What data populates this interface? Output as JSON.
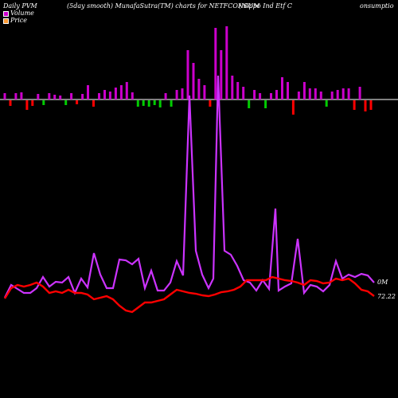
{
  "header": {
    "left": "Daily PVM",
    "middle": "(5day smooth) MunafaSutra(TM) charts for NETFCONSUM",
    "right_a": "(Nippo  Ind Etf  C",
    "right_b": "onsumptio"
  },
  "legend": [
    {
      "label": "Volume",
      "color": "#cc00cc"
    },
    {
      "label": "Price",
      "color": "#ff9933"
    }
  ],
  "end_labels": {
    "volume": "0M",
    "price": "72.22"
  },
  "colors": {
    "volume_up": "#cc00cc",
    "volume_down": "#ff0000",
    "volume_neutral": "#00cc00",
    "volume_line": "#cc33ff",
    "price_line": "#ff0000"
  },
  "chart_data": {
    "type": "bar+line",
    "bars": [
      {
        "v": 8,
        "dir": "up"
      },
      {
        "v": 7,
        "dir": "down"
      },
      {
        "v": 8,
        "dir": "up"
      },
      {
        "v": 9,
        "dir": "up"
      },
      {
        "v": 12,
        "dir": "down"
      },
      {
        "v": 7,
        "dir": "down"
      },
      {
        "v": 7,
        "dir": "up"
      },
      {
        "v": 6,
        "dir": "neutral"
      },
      {
        "v": 8,
        "dir": "up"
      },
      {
        "v": 6,
        "dir": "up"
      },
      {
        "v": 5,
        "dir": "up"
      },
      {
        "v": 6,
        "dir": "neutral"
      },
      {
        "v": 8,
        "dir": "up"
      },
      {
        "v": 5,
        "dir": "down"
      },
      {
        "v": 7,
        "dir": "up"
      },
      {
        "v": 18,
        "dir": "up"
      },
      {
        "v": 8,
        "dir": "down"
      },
      {
        "v": 8,
        "dir": "up"
      },
      {
        "v": 12,
        "dir": "up"
      },
      {
        "v": 10,
        "dir": "up"
      },
      {
        "v": 15,
        "dir": "up"
      },
      {
        "v": 18,
        "dir": "up"
      },
      {
        "v": 22,
        "dir": "up"
      },
      {
        "v": 9,
        "dir": "up"
      },
      {
        "v": 8,
        "dir": "neutral"
      },
      {
        "v": 7,
        "dir": "neutral"
      },
      {
        "v": 8,
        "dir": "neutral"
      },
      {
        "v": 6,
        "dir": "neutral"
      },
      {
        "v": 9,
        "dir": "neutral"
      },
      {
        "v": 8,
        "dir": "up"
      },
      {
        "v": 8,
        "dir": "neutral"
      },
      {
        "v": 12,
        "dir": "up"
      },
      {
        "v": 14,
        "dir": "up"
      },
      {
        "v": 62,
        "dir": "up"
      },
      {
        "v": 46,
        "dir": "up"
      },
      {
        "v": 26,
        "dir": "up"
      },
      {
        "v": 18,
        "dir": "up"
      },
      {
        "v": 8,
        "dir": "down"
      },
      {
        "v": 90,
        "dir": "up"
      },
      {
        "v": 62,
        "dir": "up"
      },
      {
        "v": 92,
        "dir": "up"
      },
      {
        "v": 30,
        "dir": "up"
      },
      {
        "v": 22,
        "dir": "up"
      },
      {
        "v": 16,
        "dir": "up"
      },
      {
        "v": 10,
        "dir": "neutral"
      },
      {
        "v": 12,
        "dir": "up"
      },
      {
        "v": 8,
        "dir": "up"
      },
      {
        "v": 10,
        "dir": "neutral"
      },
      {
        "v": 8,
        "dir": "up"
      },
      {
        "v": 12,
        "dir": "up"
      },
      {
        "v": 28,
        "dir": "up"
      },
      {
        "v": 22,
        "dir": "up"
      },
      {
        "v": 18,
        "dir": "down"
      },
      {
        "v": 10,
        "dir": "up"
      },
      {
        "v": 22,
        "dir": "up"
      },
      {
        "v": 14,
        "dir": "up"
      },
      {
        "v": 14,
        "dir": "up"
      },
      {
        "v": 10,
        "dir": "up"
      },
      {
        "v": 8,
        "dir": "neutral"
      },
      {
        "v": 10,
        "dir": "up"
      },
      {
        "v": 12,
        "dir": "up"
      },
      {
        "v": 14,
        "dir": "up"
      },
      {
        "v": 14,
        "dir": "up"
      },
      {
        "v": 12,
        "dir": "down"
      },
      {
        "v": 16,
        "dir": "up"
      },
      {
        "v": 14,
        "dir": "down"
      },
      {
        "v": 12,
        "dir": "down"
      }
    ],
    "volume_line": [
      5,
      26,
      40,
      45,
      32,
      27,
      27,
      27,
      37,
      45,
      46,
      42,
      56,
      48,
      47,
      49,
      48,
      55,
      72,
      76,
      68,
      66,
      69,
      60,
      62,
      71,
      71,
      69,
      69,
      72,
      70,
      70,
      71,
      75,
      78,
      77,
      74,
      52,
      73,
      74,
      69,
      66,
      48,
      47,
      48,
      59,
      65,
      63,
      65,
      57,
      65,
      60,
      53,
      51,
      47,
      55,
      60,
      62,
      61,
      55,
      52,
      53,
      48,
      68,
      75,
      72,
      70,
      68,
      69,
      66,
      65,
      63,
      60,
      57,
      52,
      51,
      49,
      44,
      42,
      42,
      55,
      55,
      51,
      51,
      42,
      39,
      40,
      45,
      50,
      42,
      40,
      31,
      33,
      34,
      36,
      36,
      36
    ],
    "volume_line_points": [
      [
        6,
        374
      ],
      [
        14,
        358
      ],
      [
        22,
        363
      ],
      [
        30,
        368
      ],
      [
        38,
        368
      ],
      [
        46,
        362
      ],
      [
        54,
        348
      ],
      [
        62,
        360
      ],
      [
        70,
        354
      ],
      [
        78,
        355
      ],
      [
        86,
        348
      ],
      [
        94,
        368
      ],
      [
        102,
        350
      ],
      [
        110,
        361
      ],
      [
        118,
        318
      ],
      [
        126,
        345
      ],
      [
        134,
        362
      ],
      [
        142,
        362
      ],
      [
        150,
        326
      ],
      [
        158,
        327
      ],
      [
        166,
        332
      ],
      [
        174,
        325
      ],
      [
        182,
        362
      ],
      [
        190,
        340
      ],
      [
        198,
        365
      ],
      [
        206,
        365
      ],
      [
        214,
        355
      ],
      [
        222,
        328
      ],
      [
        230,
        346
      ],
      [
        238,
        120
      ],
      [
        246,
        315
      ],
      [
        254,
        345
      ],
      [
        262,
        362
      ],
      [
        268,
        350
      ],
      [
        274,
        95
      ],
      [
        282,
        315
      ],
      [
        290,
        320
      ],
      [
        298,
        334
      ],
      [
        306,
        352
      ],
      [
        314,
        355
      ],
      [
        322,
        365
      ],
      [
        330,
        352
      ],
      [
        338,
        363
      ],
      [
        346,
        262
      ],
      [
        350,
        365
      ],
      [
        358,
        360
      ],
      [
        366,
        356
      ],
      [
        374,
        300
      ],
      [
        382,
        368
      ],
      [
        390,
        358
      ],
      [
        398,
        360
      ],
      [
        406,
        366
      ],
      [
        414,
        358
      ],
      [
        422,
        328
      ],
      [
        430,
        350
      ],
      [
        438,
        345
      ],
      [
        446,
        348
      ],
      [
        454,
        344
      ],
      [
        462,
        346
      ],
      [
        470,
        355
      ]
    ],
    "price_line_points": [
      [
        6,
        375
      ],
      [
        14,
        362
      ],
      [
        22,
        358
      ],
      [
        30,
        360
      ],
      [
        38,
        358
      ],
      [
        46,
        355
      ],
      [
        54,
        360
      ],
      [
        62,
        368
      ],
      [
        70,
        366
      ],
      [
        78,
        368
      ],
      [
        86,
        364
      ],
      [
        94,
        368
      ],
      [
        102,
        368
      ],
      [
        110,
        370
      ],
      [
        118,
        376
      ],
      [
        126,
        374
      ],
      [
        134,
        372
      ],
      [
        142,
        376
      ],
      [
        150,
        384
      ],
      [
        158,
        390
      ],
      [
        166,
        392
      ],
      [
        174,
        386
      ],
      [
        182,
        380
      ],
      [
        190,
        380
      ],
      [
        198,
        378
      ],
      [
        206,
        376
      ],
      [
        214,
        370
      ],
      [
        222,
        364
      ],
      [
        230,
        366
      ],
      [
        238,
        368
      ],
      [
        246,
        369
      ],
      [
        254,
        371
      ],
      [
        262,
        372
      ],
      [
        270,
        370
      ],
      [
        278,
        367
      ],
      [
        286,
        366
      ],
      [
        294,
        364
      ],
      [
        302,
        360
      ],
      [
        310,
        352
      ],
      [
        318,
        352
      ],
      [
        326,
        352
      ],
      [
        334,
        352
      ],
      [
        342,
        348
      ],
      [
        350,
        350
      ],
      [
        358,
        352
      ],
      [
        366,
        353
      ],
      [
        374,
        355
      ],
      [
        382,
        358
      ],
      [
        390,
        352
      ],
      [
        398,
        353
      ],
      [
        406,
        356
      ],
      [
        414,
        355
      ],
      [
        422,
        350
      ],
      [
        430,
        352
      ],
      [
        438,
        350
      ],
      [
        446,
        356
      ],
      [
        454,
        364
      ],
      [
        462,
        366
      ],
      [
        470,
        372
      ]
    ]
  }
}
